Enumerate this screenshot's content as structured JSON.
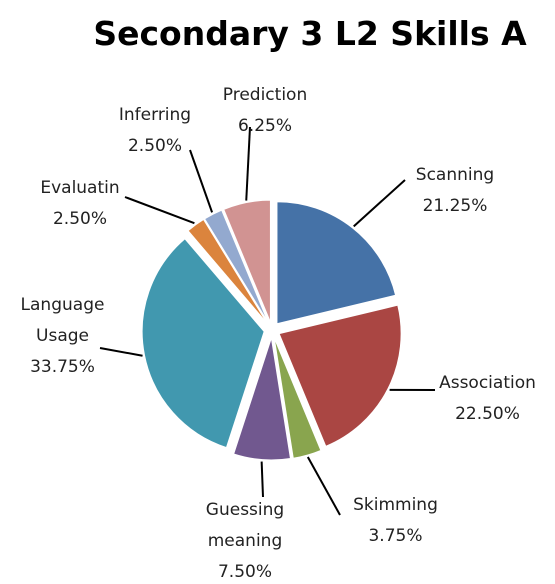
{
  "chart_data": {
    "type": "pie",
    "title": "Secondary 3 L2 Skills A",
    "categories": [
      "Scanning",
      "Association",
      "Skimming",
      "Guessing meaning",
      "Language Usage",
      "Evaluatin",
      "Inferring",
      "Prediction"
    ],
    "values": [
      21.25,
      22.5,
      3.75,
      7.5,
      33.75,
      2.5,
      2.5,
      6.25
    ],
    "value_labels": [
      "21.25%",
      "22.50%",
      "3.75%",
      "7.50%",
      "33.75%",
      "2.50%",
      "2.50%",
      "6.25%"
    ],
    "colors": [
      "#4572a7",
      "#aa4643",
      "#89a54e",
      "#71588f",
      "#4198af",
      "#db843d",
      "#93a9cf",
      "#d19392"
    ]
  }
}
